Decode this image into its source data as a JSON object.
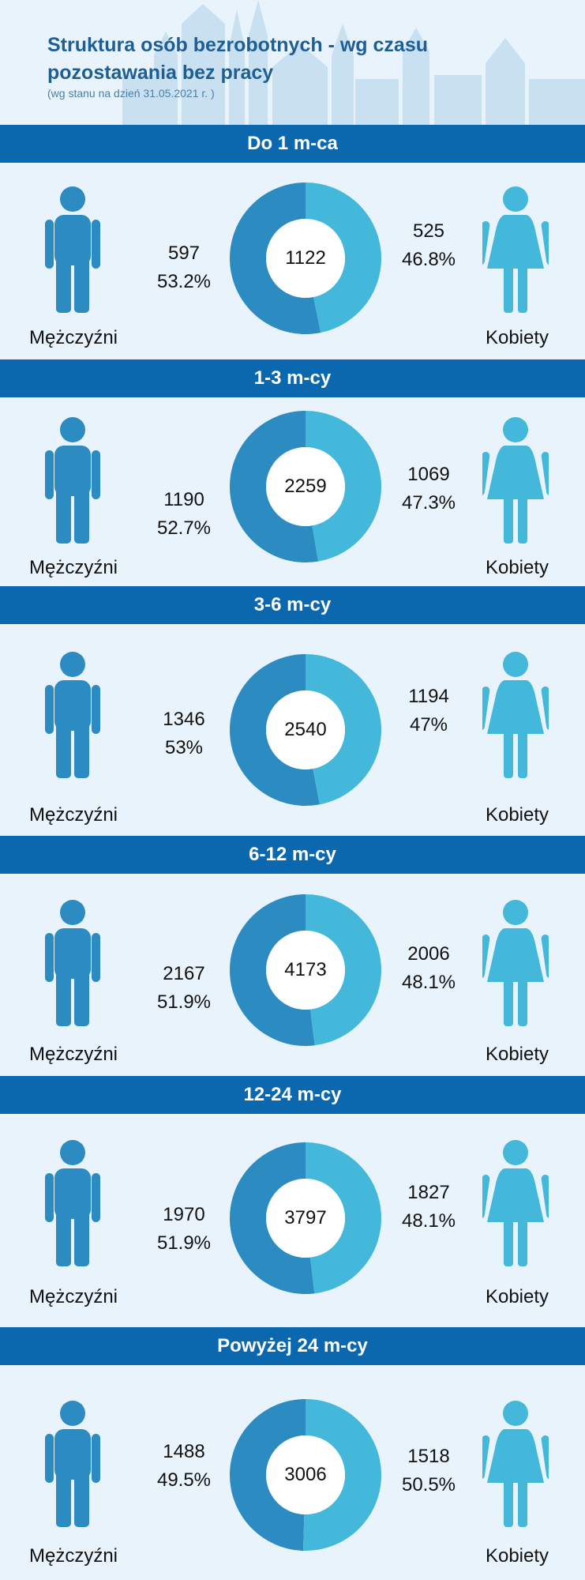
{
  "header": {
    "title": "Struktura osób bezrobotnych - wg czasu pozostawania bez pracy",
    "subtitle": "(wg stanu na dzień 31.05.2021 r. )"
  },
  "colors": {
    "men": "#2c8bc1",
    "women": "#43b8db",
    "band": "#0b67ae",
    "background": "#e8f3fb"
  },
  "sections": [
    {
      "label": "Do 1 m-ca",
      "total": "1122",
      "men": {
        "label": "Mężczyźni",
        "count": "597",
        "pct": "53.2%"
      },
      "women": {
        "label": "Kobiety",
        "count": "525",
        "pct": "46.8%"
      }
    },
    {
      "label": "1-3 m-cy",
      "total": "2259",
      "men": {
        "label": "Mężczyźni",
        "count": "1190",
        "pct": "52.7%"
      },
      "women": {
        "label": "Kobiety",
        "count": "1069",
        "pct": "47.3%"
      }
    },
    {
      "label": "3-6 m-cy",
      "total": "2540",
      "men": {
        "label": "Mężczyźni",
        "count": "1346",
        "pct": "53%"
      },
      "women": {
        "label": "Kobiety",
        "count": "1194",
        "pct": "47%"
      }
    },
    {
      "label": "6-12 m-cy",
      "total": "4173",
      "men": {
        "label": "Mężczyźni",
        "count": "2167",
        "pct": "51.9%"
      },
      "women": {
        "label": "Kobiety",
        "count": "2006",
        "pct": "48.1%"
      }
    },
    {
      "label": "12-24 m-cy",
      "total": "3797",
      "men": {
        "label": "Mężczyźni",
        "count": "1970",
        "pct": "51.9%"
      },
      "women": {
        "label": "Kobiety",
        "count": "1827",
        "pct": "48.1%"
      }
    },
    {
      "label": "Powyżej 24 m-cy",
      "total": "3006",
      "men": {
        "label": "Mężczyźni",
        "count": "1488",
        "pct": "49.5%"
      },
      "women": {
        "label": "Kobiety",
        "count": "1518",
        "pct": "50.5%"
      }
    }
  ],
  "chart_data": {
    "type": "pie",
    "title": "Struktura osób bezrobotnych - wg czasu pozostawania bez pracy",
    "subtitle": "(wg stanu na dzień 31.05.2021 r. )",
    "categories": [
      "Do 1 m-ca",
      "1-3 m-cy",
      "3-6 m-cy",
      "6-12 m-cy",
      "12-24 m-cy",
      "Powyżej 24 m-cy"
    ],
    "totals": [
      1122,
      2259,
      2540,
      4173,
      3797,
      3006
    ],
    "series": [
      {
        "name": "Mężczyźni",
        "values": [
          597,
          1190,
          1346,
          2167,
          1970,
          1488
        ],
        "percent": [
          53.2,
          52.7,
          53,
          51.9,
          51.9,
          49.5
        ]
      },
      {
        "name": "Kobiety",
        "values": [
          525,
          1069,
          1194,
          2006,
          1827,
          1518
        ],
        "percent": [
          46.8,
          47.3,
          47,
          48.1,
          48.1,
          50.5
        ]
      }
    ]
  }
}
